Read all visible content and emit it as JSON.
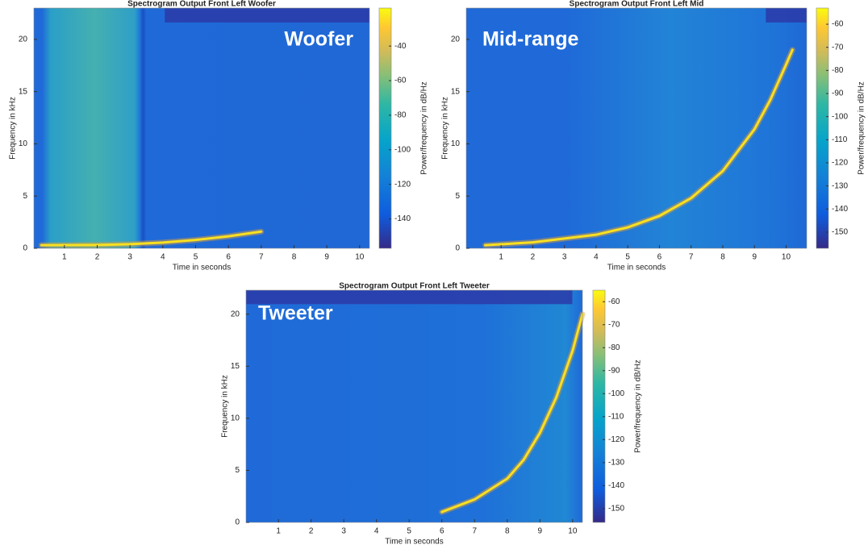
{
  "chart_data": [
    {
      "type": "spectrogram",
      "title": "Spectrogram Output Front Left Woofer",
      "overlay_label": "Woofer",
      "xlabel": "Time in seconds",
      "ylabel": "Frequency in kHz",
      "clabel": "Power/frequency in dB/Hz",
      "xlim": [
        0.07,
        10.3
      ],
      "xticks": [
        1,
        2,
        3,
        4,
        5,
        6,
        7,
        8,
        9,
        10
      ],
      "ylim": [
        0,
        23
      ],
      "yticks": [
        0,
        5,
        10,
        15,
        20
      ],
      "clim": [
        -157,
        -18
      ],
      "cticks": [
        -140,
        -120,
        -100,
        -80,
        -60,
        -40
      ],
      "x": [
        0.3,
        2,
        3,
        4,
        5,
        6,
        7
      ],
      "values": [
        0.3,
        0.32,
        0.4,
        0.55,
        0.8,
        1.15,
        1.6
      ]
    },
    {
      "type": "spectrogram",
      "title": "Spectrogram Output Front Left Mid",
      "overlay_label": "Mid-range",
      "xlabel": "Time in seconds",
      "ylabel": "Frequency in kHz",
      "clabel": "Power/frequency in dB/Hz",
      "xlim": [
        -0.1,
        10.65
      ],
      "xticks": [
        1,
        2,
        3,
        4,
        5,
        6,
        7,
        8,
        9,
        10
      ],
      "ylim": [
        0,
        23
      ],
      "yticks": [
        0,
        5,
        10,
        15,
        20
      ],
      "clim": [
        -157,
        -53
      ],
      "cticks": [
        -150,
        -140,
        -130,
        -120,
        -110,
        -100,
        -90,
        -80,
        -70,
        -60
      ],
      "x": [
        0.5,
        2,
        4,
        5,
        6,
        7,
        8,
        9,
        9.5,
        10,
        10.2
      ],
      "values": [
        0.3,
        0.57,
        1.3,
        2,
        3.1,
        4.8,
        7.4,
        11.4,
        14.2,
        17.6,
        19
      ]
    },
    {
      "type": "spectrogram",
      "title": "Spectrogram Output Front Left Tweeter",
      "overlay_label": "Tweeter",
      "xlabel": "Time in seconds",
      "ylabel": "Frequency in kHz",
      "clabel": "Power/frequency in dB/Hz",
      "xlim": [
        0.01,
        10.3
      ],
      "xticks": [
        1,
        2,
        3,
        4,
        5,
        6,
        7,
        8,
        9,
        10
      ],
      "ylim": [
        0,
        22.3
      ],
      "yticks": [
        0,
        5,
        10,
        15,
        20
      ],
      "clim": [
        -156,
        -55
      ],
      "cticks": [
        -150,
        -140,
        -130,
        -120,
        -110,
        -100,
        -90,
        -80,
        -70,
        -60
      ],
      "x": [
        6,
        7,
        8,
        8.5,
        9,
        9.5,
        10,
        10.3
      ],
      "values": [
        1,
        2.2,
        4.2,
        6,
        8.6,
        12,
        16.5,
        20
      ]
    }
  ]
}
